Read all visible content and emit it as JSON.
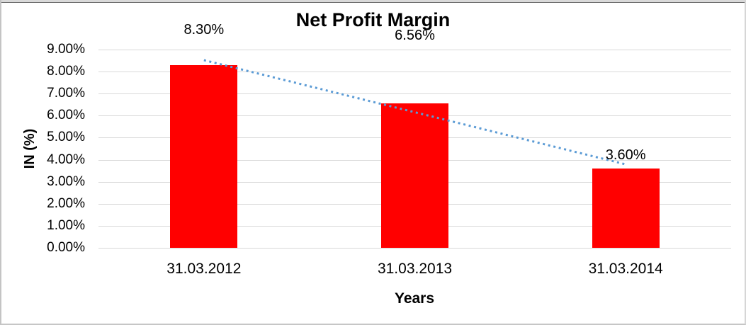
{
  "chart_data": {
    "type": "bar",
    "title": "Net Profit Margin",
    "xlabel": "Years",
    "ylabel": "IN (%)",
    "categories": [
      "31.03.2012",
      "31.03.2013",
      "31.03.2014"
    ],
    "values": [
      8.3,
      6.56,
      3.6
    ],
    "data_labels": [
      "8.30%",
      "6.56%",
      "3.60%"
    ],
    "ylim": [
      0,
      9
    ],
    "y_tick_step": 1,
    "y_ticks_top_down": [
      "9.00%",
      "8.00%",
      "7.00%",
      "6.00%",
      "5.00%",
      "4.00%",
      "3.00%",
      "2.00%",
      "1.00%",
      "0.00%"
    ],
    "grid": true,
    "legend": "none",
    "bar_color": "#ff0000",
    "gridline_color": "#d9d9d9",
    "text_color": "#000000",
    "trendline": {
      "style": "dotted",
      "color": "#5b9bd5",
      "start_category_index": 0,
      "start_value": 8.52,
      "end_category_index": 2,
      "end_value": 3.79
    }
  }
}
